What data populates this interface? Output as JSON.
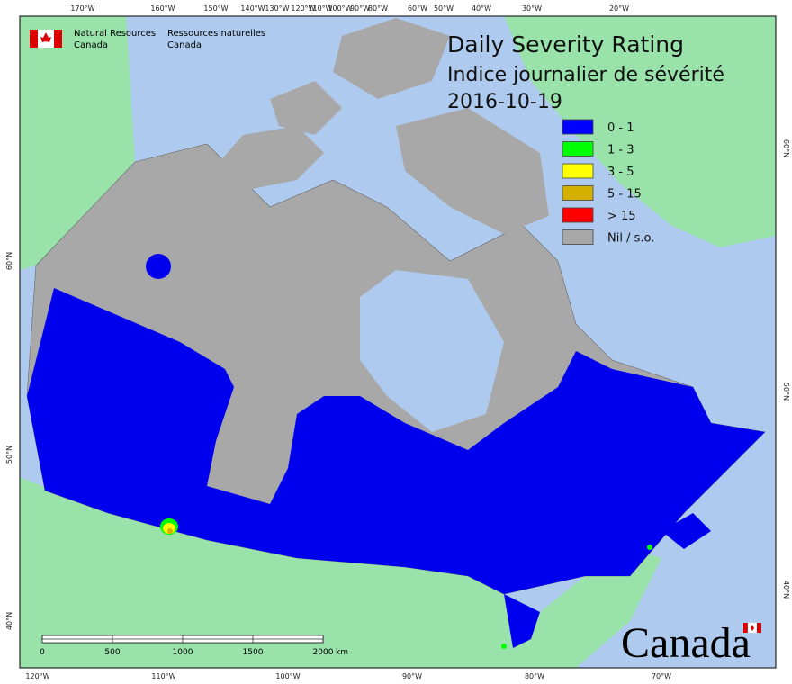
{
  "agency": {
    "en": [
      "Natural Resources",
      "Canada"
    ],
    "fr": [
      "Ressources naturelles",
      "Canada"
    ]
  },
  "title": {
    "en": "Daily Severity Rating",
    "fr": "Indice journalier de sévérité",
    "date": "2016-10-19"
  },
  "legend": [
    {
      "label": "0 - 1",
      "color": "#0000ff"
    },
    {
      "label": "1 - 3",
      "color": "#00ff00"
    },
    {
      "label": "3 - 5",
      "color": "#ffff00"
    },
    {
      "label": "5 - 15",
      "color": "#d4b000"
    },
    {
      "label": "> 15",
      "color": "#ff0000"
    },
    {
      "label": "Nil / s.o.",
      "color": "#a8a8a8"
    }
  ],
  "graticule": {
    "top": [
      "170°W",
      "160°W",
      "150°W",
      "140°W",
      "130°W",
      "120°W",
      "110°W",
      "100°W",
      "90°W",
      "80°W",
      "60°W",
      "50°W",
      "40°W",
      "30°W",
      "20°W"
    ],
    "bottom": [
      "120°W",
      "110°W",
      "100°W",
      "90°W",
      "80°W",
      "70°W"
    ],
    "left": [
      "60°N",
      "50°N",
      "40°N"
    ],
    "right": [
      "60°N",
      "50°N",
      "40°N"
    ]
  },
  "scale_bar": {
    "ticks": [
      "0",
      "500",
      "1000",
      "1500",
      "2000"
    ],
    "unit": "km"
  },
  "wordmark": "Canada"
}
